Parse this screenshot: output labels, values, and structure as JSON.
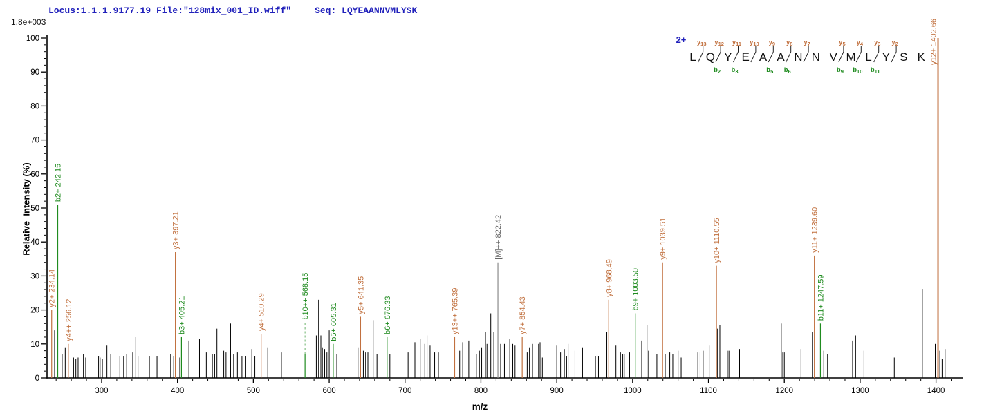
{
  "header": {
    "locus_file": "Locus:1.1.1.9177.19 File:\"128mix_001_ID.wiff\"",
    "seq_label": "Seq: LQYEAANNVMLYSK",
    "text_color": "#2121BB"
  },
  "sequence_ladder": {
    "charge_label": "2+",
    "residues": [
      "L",
      "Q",
      "Y",
      "E",
      "A",
      "A",
      "N",
      "N",
      "V",
      "M",
      "L",
      "Y",
      "S",
      "K"
    ],
    "boundaries": [
      {
        "y": "y13",
        "b": null
      },
      {
        "y": "y12",
        "b": "b2"
      },
      {
        "y": "y11",
        "b": "b3"
      },
      {
        "y": "y10",
        "b": null
      },
      {
        "y": "y9",
        "b": "b5"
      },
      {
        "y": "y8",
        "b": "b6"
      },
      {
        "y": "y7",
        "b": null
      },
      {
        "y": null,
        "b": null
      },
      {
        "y": "y5",
        "b": "b9"
      },
      {
        "y": "y4",
        "b": "b10"
      },
      {
        "y": "y3",
        "b": "b11"
      },
      {
        "y": "y2",
        "b": null
      },
      {
        "y": null,
        "b": null
      }
    ]
  },
  "chart_data": {
    "type": "mass-spectrum-stick",
    "xlabel": "m/z",
    "ylabel": "Relative  Intensity (%)",
    "scale_label": "1.8e+003",
    "xlim": [
      228,
      1435
    ],
    "ylim": [
      0,
      100
    ],
    "x_major_every": 100,
    "x_minor_every": 20,
    "x_label_start": 300,
    "x_label_end": 1400,
    "y_major_every": 10,
    "y_minor_every": 2,
    "colors": {
      "y_ion": "#C1703E",
      "b_ion": "#1F8B1F",
      "precursor_line": "#8A8A8A",
      "precursor_label": "#666666",
      "peak_black": "#000000",
      "charge_blue": "#2121BB",
      "residue_black": "#111111"
    },
    "labeled_peaks": [
      {
        "mz": 234.14,
        "pct": 20,
        "label": "y2+ 234.14",
        "type": "y"
      },
      {
        "mz": 242.15,
        "pct": 51,
        "label": "b2+ 242.15",
        "type": "b"
      },
      {
        "mz": 256.12,
        "pct": 10,
        "label": "y4++ 256.12",
        "type": "y"
      },
      {
        "mz": 397.21,
        "pct": 37,
        "label": "y3+ 397.21",
        "type": "y"
      },
      {
        "mz": 405.21,
        "pct": 12,
        "label": "b3+ 405.21",
        "type": "b"
      },
      {
        "mz": 510.29,
        "pct": 13,
        "label": "y4+ 510.29",
        "type": "y"
      },
      {
        "mz": 568.15,
        "pct": 7,
        "label": "b10++ 568.15",
        "type": "b",
        "dashed_leader": true
      },
      {
        "mz": 605.31,
        "pct": 10,
        "label": "b5+ 605.31",
        "type": "b"
      },
      {
        "mz": 641.35,
        "pct": 18,
        "label": "y5+ 641.35",
        "type": "y"
      },
      {
        "mz": 676.33,
        "pct": 12,
        "label": "b6+ 676.33",
        "type": "b"
      },
      {
        "mz": 765.39,
        "pct": 12,
        "label": "y13++ 765.39",
        "type": "y"
      },
      {
        "mz": 822.42,
        "pct": 34,
        "label": "[M]++ 822.42",
        "type": "precursor"
      },
      {
        "mz": 854.43,
        "pct": 12,
        "label": "y7+ 854.43",
        "type": "y"
      },
      {
        "mz": 968.49,
        "pct": 23,
        "label": "y8+ 968.49",
        "type": "y"
      },
      {
        "mz": 1003.5,
        "pct": 19,
        "label": "b9+ 1003.50",
        "type": "b"
      },
      {
        "mz": 1039.51,
        "pct": 34,
        "label": "y9+ 1039.51",
        "type": "y"
      },
      {
        "mz": 1110.55,
        "pct": 33,
        "label": "y10+ 1110.55",
        "type": "y"
      },
      {
        "mz": 1239.6,
        "pct": 36,
        "label": "y11+ 1239.60",
        "type": "y"
      },
      {
        "mz": 1247.59,
        "pct": 16,
        "label": "b11+ 1247.59",
        "type": "b"
      },
      {
        "mz": 1402.66,
        "pct": 100,
        "label": "y12+ 1402.66",
        "type": "y",
        "label_side": "left",
        "thick": true
      }
    ],
    "unlabeled_peaks": [
      [
        228,
        6
      ],
      [
        238,
        14
      ],
      [
        248,
        7
      ],
      [
        252,
        9
      ],
      [
        263,
        6
      ],
      [
        266,
        5.5
      ],
      [
        269,
        6
      ],
      [
        276,
        7
      ],
      [
        279,
        6
      ],
      [
        296,
        6.5
      ],
      [
        298,
        6
      ],
      [
        301,
        5.5
      ],
      [
        307,
        9.5
      ],
      [
        312,
        7
      ],
      [
        324,
        6.5
      ],
      [
        329,
        6.5
      ],
      [
        333,
        7
      ],
      [
        341,
        7.5
      ],
      [
        345,
        12
      ],
      [
        348,
        6.5
      ],
      [
        363,
        6.5
      ],
      [
        373,
        6.5
      ],
      [
        391,
        7
      ],
      [
        395,
        6.5
      ],
      [
        403,
        6
      ],
      [
        415,
        11
      ],
      [
        419,
        8
      ],
      [
        429,
        11.5
      ],
      [
        438,
        7.5
      ],
      [
        446,
        7
      ],
      [
        449,
        7
      ],
      [
        452,
        14.5
      ],
      [
        461,
        8
      ],
      [
        464,
        7.5
      ],
      [
        470,
        16
      ],
      [
        474,
        7
      ],
      [
        479,
        7.5
      ],
      [
        485,
        6.5
      ],
      [
        490,
        6.5
      ],
      [
        498,
        8.5
      ],
      [
        502,
        6.5
      ],
      [
        519,
        9
      ],
      [
        537,
        7.5
      ],
      [
        583,
        12.5
      ],
      [
        586,
        23
      ],
      [
        589,
        12.5
      ],
      [
        591,
        9
      ],
      [
        594,
        8.5
      ],
      [
        597,
        7.5
      ],
      [
        600,
        14
      ],
      [
        610,
        7
      ],
      [
        638,
        9
      ],
      [
        645,
        8
      ],
      [
        648,
        7.5
      ],
      [
        651,
        7.5
      ],
      [
        658,
        17
      ],
      [
        663,
        7
      ],
      [
        680,
        7
      ],
      [
        704,
        7.5
      ],
      [
        713,
        10.5
      ],
      [
        720,
        11.5
      ],
      [
        726,
        10
      ],
      [
        729,
        12.5
      ],
      [
        733,
        9.5
      ],
      [
        739,
        7.5
      ],
      [
        744,
        7.5
      ],
      [
        772,
        8
      ],
      [
        776,
        10.5
      ],
      [
        784,
        11
      ],
      [
        794,
        7
      ],
      [
        798,
        8
      ],
      [
        801,
        9
      ],
      [
        806,
        13.5
      ],
      [
        808,
        10
      ],
      [
        813,
        19
      ],
      [
        817,
        13.5
      ],
      [
        826,
        10
      ],
      [
        831,
        10
      ],
      [
        838,
        11.5
      ],
      [
        842,
        10
      ],
      [
        845,
        9.5
      ],
      [
        861,
        7.5
      ],
      [
        864,
        9
      ],
      [
        868,
        10
      ],
      [
        876,
        10
      ],
      [
        878,
        10.5
      ],
      [
        881,
        6
      ],
      [
        900,
        9.5
      ],
      [
        905,
        7.5
      ],
      [
        910,
        8.5
      ],
      [
        913,
        6.5
      ],
      [
        915,
        10
      ],
      [
        924,
        8
      ],
      [
        934,
        9
      ],
      [
        951,
        6.5
      ],
      [
        955,
        6.5
      ],
      [
        966,
        13.5
      ],
      [
        978,
        9.5
      ],
      [
        984,
        7.5
      ],
      [
        987,
        7
      ],
      [
        989,
        7
      ],
      [
        996,
        7.5
      ],
      [
        1012,
        11
      ],
      [
        1019,
        15.5
      ],
      [
        1021,
        8
      ],
      [
        1032,
        7
      ],
      [
        1043,
        7
      ],
      [
        1049,
        7.5
      ],
      [
        1053,
        7
      ],
      [
        1060,
        8
      ],
      [
        1064,
        6
      ],
      [
        1086,
        7.5
      ],
      [
        1089,
        7.5
      ],
      [
        1093,
        8
      ],
      [
        1101,
        9.5
      ],
      [
        1112,
        14.5
      ],
      [
        1115,
        15.5
      ],
      [
        1125,
        8
      ],
      [
        1127,
        8
      ],
      [
        1141,
        8.5
      ],
      [
        1196,
        16
      ],
      [
        1198,
        7.5
      ],
      [
        1200,
        7.5
      ],
      [
        1222,
        8.5
      ],
      [
        1237,
        13.5
      ],
      [
        1252,
        8
      ],
      [
        1257,
        7
      ],
      [
        1290,
        11
      ],
      [
        1294,
        12.5
      ],
      [
        1305,
        8
      ],
      [
        1345,
        6
      ],
      [
        1382,
        26
      ],
      [
        1399,
        10
      ],
      [
        1405,
        8
      ],
      [
        1408,
        5.5
      ],
      [
        1412,
        8.5
      ]
    ]
  }
}
